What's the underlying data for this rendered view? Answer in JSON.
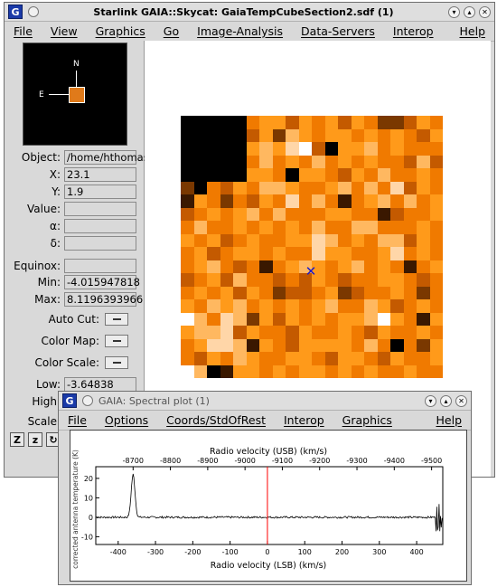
{
  "main_window": {
    "title": "Starlink GAIA::Skycat: GaiaTempCubeSection2.sdf (1)",
    "app_icon": "G",
    "menu": [
      "File",
      "View",
      "Graphics",
      "Go",
      "Image-Analysis",
      "Data-Servers",
      "Interop",
      "Help"
    ]
  },
  "panner": {
    "north_label": "N",
    "east_label": "E"
  },
  "info": {
    "object_label": "Object:",
    "object_value": "/home/hthomas",
    "x_label": "X:",
    "x_value": "23.1",
    "y_label": "Y:",
    "y_value": "1.9",
    "value_label": "Value:",
    "value_value": "",
    "alpha_label": "α:",
    "alpha_value": "",
    "delta_label": "δ:",
    "delta_value": "",
    "equinox_label": "Equinox:",
    "equinox_value": "",
    "min_label": "Min:",
    "min_value": "-4.015947818",
    "max_label": "Max:",
    "max_value": "8.1196393966",
    "low_label": "Low:",
    "low_value": "-3.64838",
    "high_label": "High:",
    "scale_label": "Scale:"
  },
  "options": {
    "auto_cut": "Auto Cut:",
    "color_map": "Color Map:",
    "color_scale": "Color Scale:"
  },
  "toolbar": {
    "zoom_in": "Z",
    "zoom_out": "z",
    "rotate": "↻"
  },
  "spectral_window": {
    "title": "GAIA: Spectral plot (1)",
    "app_icon": "G",
    "menu": [
      "File",
      "Options",
      "Coords/StdOfRest",
      "Interop",
      "Graphics",
      "Help"
    ]
  },
  "chart_data": {
    "type": "line",
    "title": "",
    "top_axis_label": "Radio velocity (USB) (km/s)",
    "top_ticks": [
      "-8700",
      "-8800",
      "-8900",
      "-9000",
      "-9100",
      "-9200",
      "-9300",
      "-9400",
      "-9500"
    ],
    "xlabel": "Radio velocity (LSB) (km/s)",
    "x_ticks": [
      "-400",
      "-300",
      "-200",
      "-100",
      "0",
      "100",
      "200",
      "300",
      "400"
    ],
    "ylabel": "corrected antenna temperature (K)",
    "y_ticks": [
      "-10",
      "0",
      "10",
      "20"
    ],
    "xlim": [
      -460,
      470
    ],
    "ylim": [
      -14,
      26
    ],
    "marker_x": 0,
    "marker_color": "#ff0000",
    "peak_center": -360,
    "peak_height": 22,
    "noise_level": 0.5
  },
  "image": {
    "colors": [
      "#000000",
      "#3a1800",
      "#7a3800",
      "#c45a00",
      "#f07a00",
      "#ff9a1a",
      "#ffb860",
      "#ffd6a8",
      "#ffffff"
    ],
    "cursor_color": "#1a1acc",
    "pixels": [
      [
        0,
        0,
        0,
        0,
        0,
        4,
        5,
        5,
        3,
        5,
        4,
        5,
        3,
        5,
        4,
        2,
        2,
        3,
        5,
        4
      ],
      [
        0,
        0,
        0,
        0,
        0,
        3,
        5,
        2,
        6,
        5,
        4,
        5,
        5,
        4,
        5,
        4,
        5,
        4,
        3,
        5
      ],
      [
        0,
        0,
        0,
        0,
        0,
        5,
        6,
        5,
        7,
        8,
        3,
        0,
        5,
        5,
        6,
        4,
        5,
        4,
        4,
        4
      ],
      [
        0,
        0,
        0,
        0,
        0,
        4,
        6,
        4,
        5,
        4,
        6,
        4,
        5,
        4,
        5,
        4,
        4,
        3,
        6,
        3
      ],
      [
        0,
        0,
        0,
        0,
        0,
        5,
        5,
        4,
        0,
        5,
        5,
        4,
        3,
        5,
        4,
        6,
        4,
        4,
        5,
        4
      ],
      [
        2,
        0,
        4,
        3,
        5,
        4,
        6,
        6,
        5,
        4,
        4,
        5,
        6,
        4,
        6,
        4,
        7,
        3,
        5,
        4
      ],
      [
        1,
        5,
        4,
        2,
        4,
        3,
        5,
        4,
        7,
        4,
        6,
        4,
        1,
        4,
        5,
        6,
        4,
        6,
        4,
        5
      ],
      [
        3,
        4,
        5,
        4,
        5,
        6,
        4,
        6,
        4,
        4,
        4,
        5,
        5,
        4,
        4,
        1,
        3,
        4,
        4,
        5
      ],
      [
        4,
        6,
        4,
        4,
        5,
        4,
        5,
        4,
        5,
        4,
        6,
        4,
        4,
        6,
        6,
        4,
        4,
        4,
        5,
        4
      ],
      [
        5,
        4,
        5,
        3,
        4,
        5,
        4,
        4,
        5,
        5,
        7,
        6,
        4,
        5,
        4,
        6,
        6,
        3,
        5,
        4
      ],
      [
        4,
        5,
        3,
        4,
        5,
        5,
        4,
        5,
        4,
        4,
        7,
        5,
        5,
        4,
        4,
        5,
        7,
        4,
        5,
        4
      ],
      [
        4,
        5,
        6,
        4,
        3,
        4,
        1,
        4,
        5,
        6,
        5,
        4,
        5,
        6,
        4,
        5,
        4,
        1,
        4,
        5
      ],
      [
        3,
        4,
        5,
        3,
        6,
        4,
        4,
        3,
        4,
        3,
        5,
        4,
        3,
        4,
        4,
        5,
        5,
        4,
        3,
        4
      ],
      [
        4,
        5,
        4,
        5,
        3,
        5,
        4,
        2,
        3,
        3,
        4,
        5,
        2,
        3,
        4,
        4,
        5,
        4,
        2,
        4
      ],
      [
        5,
        4,
        6,
        5,
        6,
        4,
        5,
        4,
        5,
        4,
        5,
        6,
        4,
        4,
        6,
        5,
        3,
        4,
        5,
        4
      ],
      [
        8,
        6,
        4,
        7,
        6,
        2,
        5,
        3,
        5,
        4,
        5,
        4,
        5,
        5,
        6,
        8,
        5,
        4,
        1,
        5
      ],
      [
        5,
        6,
        6,
        7,
        3,
        5,
        4,
        4,
        3,
        5,
        4,
        4,
        5,
        4,
        3,
        5,
        4,
        4,
        5,
        4
      ],
      [
        4,
        5,
        7,
        7,
        6,
        1,
        5,
        4,
        3,
        5,
        5,
        5,
        5,
        4,
        6,
        4,
        0,
        4,
        2,
        5
      ],
      [
        4,
        3,
        5,
        4,
        6,
        5,
        4,
        4,
        5,
        5,
        4,
        3,
        5,
        5,
        4,
        3,
        5,
        4,
        4,
        5
      ],
      [
        8,
        6,
        0,
        1,
        5,
        5,
        4,
        5,
        4,
        5,
        5,
        4,
        5,
        4,
        5,
        4,
        4,
        5,
        4,
        4
      ]
    ]
  }
}
